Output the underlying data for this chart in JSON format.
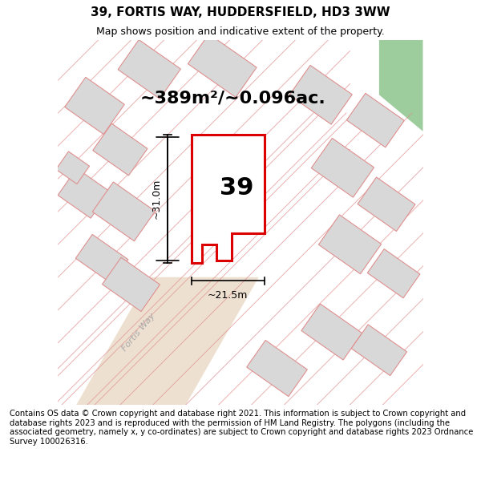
{
  "title": "39, FORTIS WAY, HUDDERSFIELD, HD3 3WW",
  "subtitle": "Map shows position and indicative extent of the property.",
  "area_label": "~389m²/~0.096ac.",
  "number_label": "39",
  "dim_vertical": "~31.0m",
  "dim_horizontal": "~21.5m",
  "street_label": "Fortis Way",
  "footer": "Contains OS data © Crown copyright and database right 2021. This information is subject to Crown copyright and database rights 2023 and is reproduced with the permission of HM Land Registry. The polygons (including the associated geometry, namely x, y co-ordinates) are subject to Crown copyright and database rights 2023 Ordnance Survey 100026316.",
  "bg_color": "#f5f0eb",
  "map_bg": "#f5f0eb",
  "plot_fill": "#ffffff",
  "plot_edge": "#dd0000",
  "building_fill": "#d8d8d8",
  "road_color": "#e8d8c8",
  "other_building_stroke": "#e09090",
  "green_fill": "#90cc90",
  "title_fontsize": 11,
  "subtitle_fontsize": 9,
  "area_fontsize": 16,
  "number_fontsize": 22,
  "footer_fontsize": 7.2
}
